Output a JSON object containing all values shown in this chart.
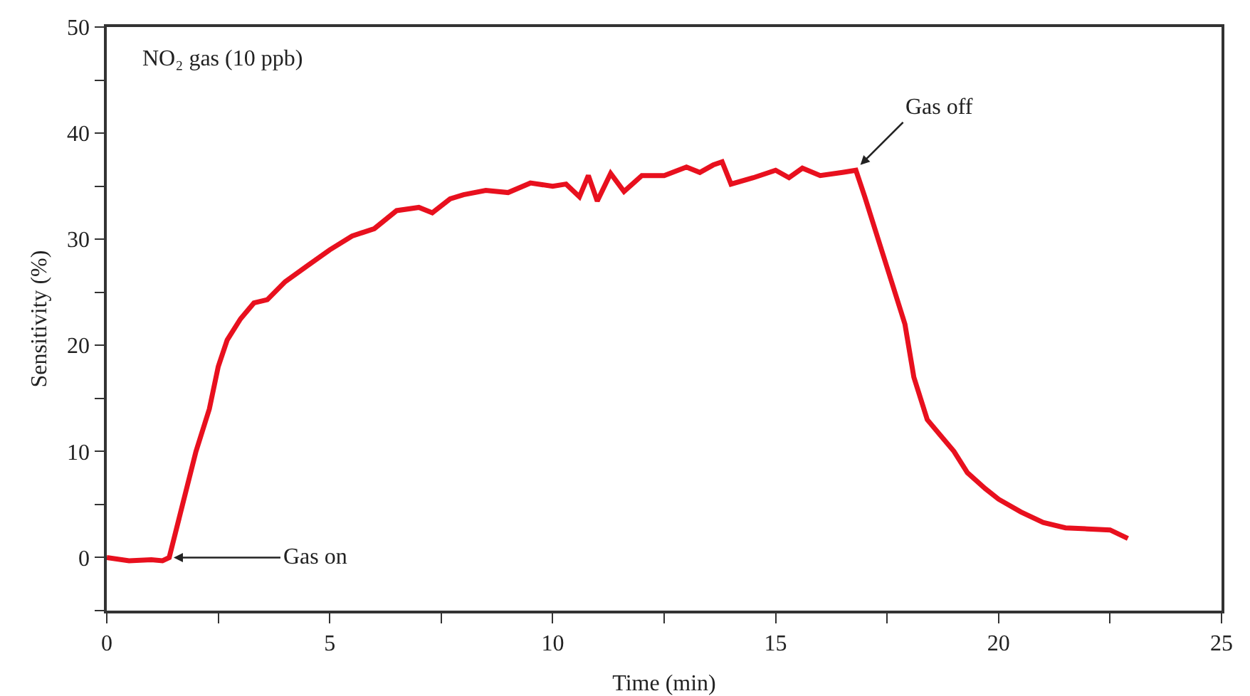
{
  "chart_data": {
    "type": "line",
    "xlabel": "Time (min)",
    "ylabel": "Sensitivity (%)",
    "xlim": [
      0,
      25
    ],
    "ylim": [
      -5,
      50
    ],
    "xticks": [
      0,
      {
        "value": 2.5,
        "label": null
      },
      5,
      {
        "value": 7.5,
        "label": null
      },
      10,
      {
        "value": 12.5,
        "label": null
      },
      15,
      {
        "value": 17.5,
        "label": null
      },
      20,
      {
        "value": 22.5,
        "label": null
      },
      25
    ],
    "yticks": [
      {
        "value": -5,
        "label": null
      },
      0,
      {
        "value": 5,
        "label": null
      },
      10,
      {
        "value": 15,
        "label": null
      },
      20,
      {
        "value": 25,
        "label": null
      },
      30,
      {
        "value": 35,
        "label": null
      },
      40,
      {
        "value": 45,
        "label": null
      },
      50
    ],
    "grid": false,
    "marker": "none",
    "line_style": "solid",
    "x": [
      0,
      0.5,
      1,
      1.25,
      1.4,
      1.7,
      2,
      2.3,
      2.5,
      2.7,
      3,
      3.3,
      3.6,
      4,
      4.5,
      5,
      5.5,
      6,
      6.5,
      7,
      7.3,
      7.7,
      8,
      8.5,
      9,
      9.5,
      10,
      10.3,
      10.6,
      10.8,
      11,
      11.3,
      11.6,
      12,
      12.5,
      13,
      13.3,
      13.6,
      13.8,
      14,
      14.5,
      15,
      15.3,
      15.6,
      16,
      16.5,
      16.8,
      17,
      17.3,
      17.6,
      17.9,
      18.1,
      18.4,
      18.7,
      19,
      19.3,
      19.7,
      20,
      20.5,
      21,
      21.5,
      22,
      22.5,
      22.9
    ],
    "series": [
      {
        "color": "#e8101e",
        "values": [
          0,
          -0.3,
          -0.2,
          -0.3,
          0,
          5,
          10,
          14,
          18,
          20.5,
          22.5,
          24,
          24.3,
          26,
          27.5,
          29,
          30.3,
          31,
          32.7,
          33,
          32.5,
          33.8,
          34.2,
          34.6,
          34.4,
          35.3,
          35,
          35.2,
          34,
          36,
          33.6,
          36.2,
          34.5,
          36,
          36,
          36.8,
          36.3,
          37,
          37.3,
          35.2,
          35.8,
          36.5,
          35.8,
          36.7,
          36,
          36.3,
          36.5,
          34,
          30,
          26,
          22,
          17,
          13,
          11.5,
          10,
          8,
          6.5,
          5.5,
          4.3,
          3.3,
          2.8,
          2.7,
          2.6,
          1.8
        ]
      }
    ],
    "annotations": [
      "NO₂ gas (10 ppb)",
      {
        "text": "Gas on",
        "x": 1.5,
        "y": 0
      },
      {
        "text": "Gas off",
        "x": 16.9,
        "y": 37
      }
    ]
  }
}
